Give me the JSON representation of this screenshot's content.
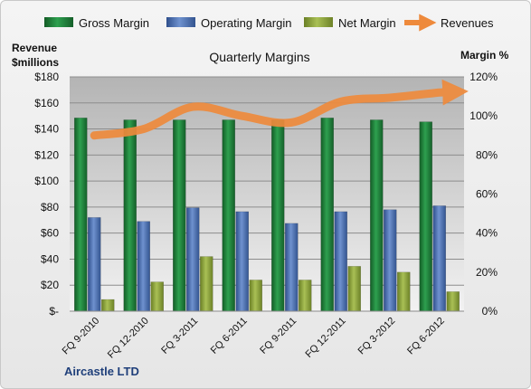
{
  "chart_data": {
    "type": "bar",
    "title": "Quarterly Margins",
    "company": "Aircastle LTD",
    "left_axis": {
      "title_line1": "Revenue",
      "title_line2": "$millions",
      "min": 0,
      "max": 180,
      "step": 20,
      "tick_labels": [
        "$-",
        "$20",
        "$40",
        "$60",
        "$80",
        "$100",
        "$120",
        "$140",
        "$160",
        "$180"
      ]
    },
    "right_axis": {
      "title": "Margin %",
      "min": 0,
      "max": 120,
      "step": 20,
      "tick_labels": [
        "0%",
        "20%",
        "40%",
        "60%",
        "80%",
        "100%",
        "120%"
      ]
    },
    "categories": [
      "FQ 9-2010",
      "FQ 12-2010",
      "FQ 3-2011",
      "FQ 6-2011",
      "FQ 9-2011",
      "FQ 12-2011",
      "FQ 3-2012",
      "FQ 6-2012"
    ],
    "series": [
      {
        "name": "Gross Margin",
        "axis": "right",
        "kind": "bar",
        "color": "#1e7b3a",
        "values": [
          99,
          98,
          98,
          98,
          98,
          99,
          98,
          97
        ]
      },
      {
        "name": "Operating Margin",
        "axis": "right",
        "kind": "bar",
        "color": "#4a6fb0",
        "values": [
          48,
          46,
          53,
          51,
          45,
          51,
          52,
          54
        ]
      },
      {
        "name": "Net Margin",
        "axis": "right",
        "kind": "bar",
        "color": "#8da33b",
        "values": [
          6,
          15,
          28,
          16,
          16,
          23,
          20,
          10
        ]
      },
      {
        "name": "Revenues",
        "axis": "left",
        "kind": "line",
        "color": "#ee8a3c",
        "values": [
          135,
          140,
          157,
          150,
          145,
          161,
          164,
          168
        ]
      }
    ],
    "grid": true,
    "legend_position": "top"
  }
}
